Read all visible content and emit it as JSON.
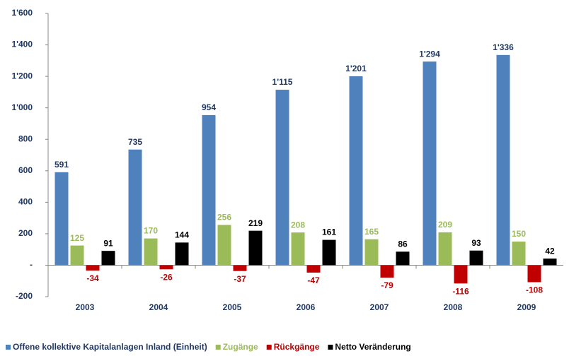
{
  "chart_data": {
    "type": "bar",
    "categories": [
      "2003",
      "2004",
      "2005",
      "2006",
      "2007",
      "2008",
      "2009"
    ],
    "series": [
      {
        "name": "Offene kollektive Kapitalanlagen Inland (Einheit)",
        "color": "#4f81bd",
        "label_color": "#1f3864",
        "values": [
          591,
          735,
          954,
          1115,
          1201,
          1294,
          1336
        ],
        "value_labels": [
          "591",
          "735",
          "954",
          "1'115",
          "1'201",
          "1'294",
          "1'336"
        ]
      },
      {
        "name": "Zugänge",
        "color": "#9bbb59",
        "label_color": "#9bbb59",
        "values": [
          125,
          170,
          256,
          208,
          165,
          209,
          150
        ]
      },
      {
        "name": "Rückgänge",
        "color": "#c00000",
        "label_color": "#c00000",
        "values": [
          -34,
          -26,
          -37,
          -47,
          -79,
          -116,
          -108
        ]
      },
      {
        "name": "Netto Veränderung",
        "color": "#000000",
        "label_color": "#000000",
        "values": [
          91,
          144,
          219,
          161,
          86,
          93,
          42
        ]
      }
    ],
    "ylim": [
      -200,
      1600
    ],
    "yticks": [
      -200,
      {
        "value": 0,
        "label": "-"
      },
      200,
      400,
      600,
      800,
      {
        "value": 1000,
        "label": "1'000"
      },
      {
        "value": 1200,
        "label": "1'200"
      },
      {
        "value": 1400,
        "label": "1'400"
      },
      {
        "value": 1600,
        "label": "1'600"
      }
    ],
    "grid": false,
    "legend": "bottom"
  }
}
